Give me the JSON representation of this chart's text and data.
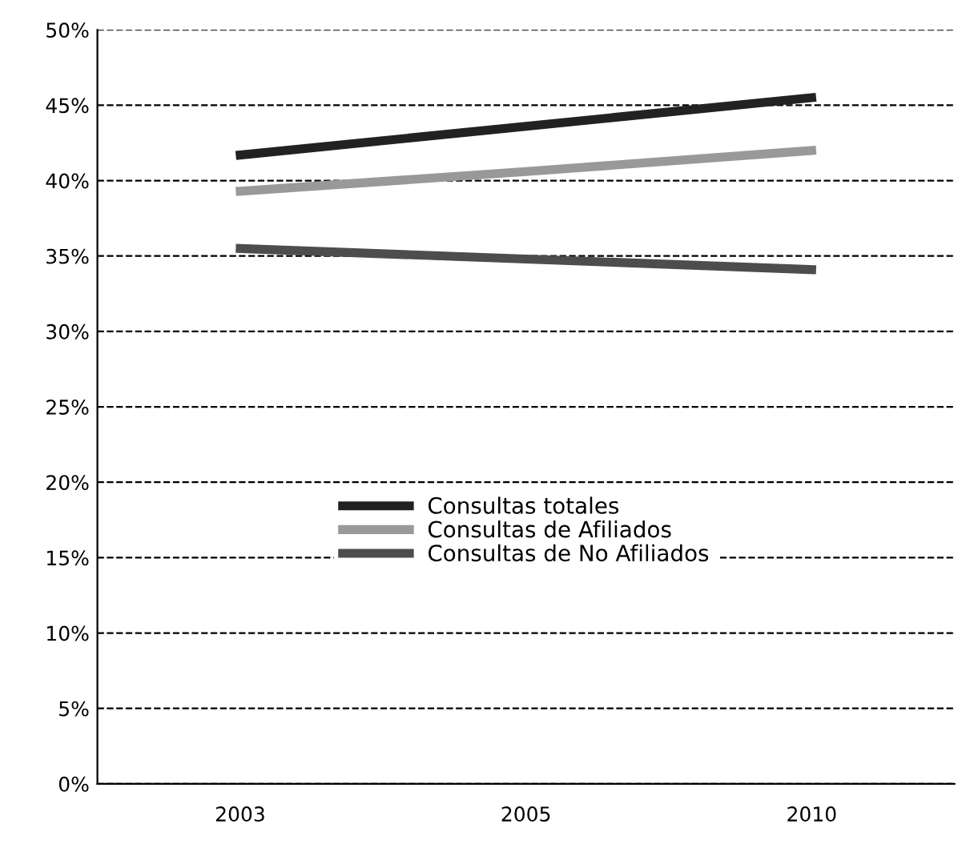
{
  "chart_data": {
    "type": "line",
    "categories": [
      "2003",
      "2005",
      "2010"
    ],
    "series": [
      {
        "name": "Consultas totales",
        "color": "#222222",
        "values": [
          41.7,
          43.6,
          45.5
        ]
      },
      {
        "name": "Consultas de Afiliados",
        "color": "#999999",
        "values": [
          39.3,
          40.6,
          42.0
        ]
      },
      {
        "name": "Consultas de No Afiliados",
        "color": "#4d4d4d",
        "values": [
          35.5,
          34.8,
          34.1
        ]
      }
    ],
    "ylim": [
      0,
      50
    ],
    "yticks": [
      {
        "value": 0,
        "label": "0%"
      },
      {
        "value": 5,
        "label": "5%"
      },
      {
        "value": 10,
        "label": "10%"
      },
      {
        "value": 15,
        "label": "15%"
      },
      {
        "value": 20,
        "label": "20%"
      },
      {
        "value": 25,
        "label": "25%"
      },
      {
        "value": 30,
        "label": "30%"
      },
      {
        "value": 35,
        "label": "35%"
      },
      {
        "value": 40,
        "label": "40%"
      },
      {
        "value": 45,
        "label": "45%"
      },
      {
        "value": 50,
        "label": "50%"
      }
    ],
    "grid": "y",
    "legend": "center",
    "marker": "none",
    "line_style": "solid"
  }
}
